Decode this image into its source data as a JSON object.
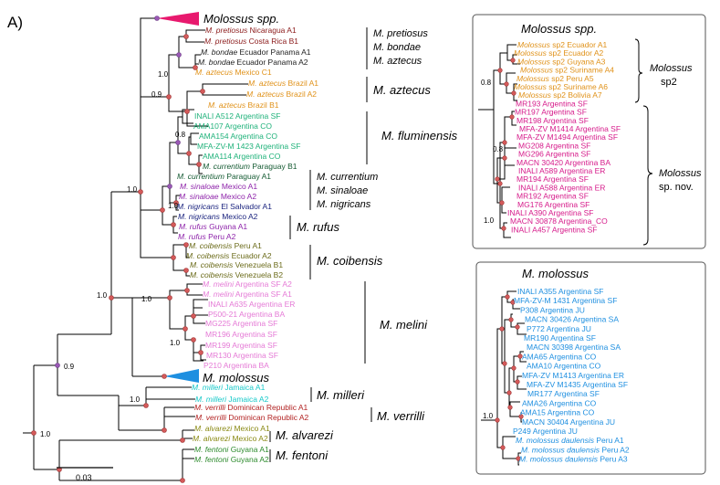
{
  "panel_label": "A)",
  "scale_bar": {
    "label": "0.03"
  },
  "main_tree": {
    "collapsed": [
      {
        "name": "Molossus spp.",
        "color": "#e8196e"
      },
      {
        "name": "M. molossus",
        "color": "#1e8fe0"
      }
    ],
    "tips": [
      {
        "sp": "M. pretiosus",
        "rest": " Nicaragua A1",
        "color": "#8b1a1a"
      },
      {
        "sp": "M. pretiosus",
        "rest": " Costa Rica B1",
        "color": "#8b1a1a"
      },
      {
        "sp": "M. bondae",
        "rest": " Ecuador Panama A1",
        "color": "#222222"
      },
      {
        "sp": "M. bondae",
        "rest": " Ecuador Panama A2",
        "color": "#222222"
      },
      {
        "sp": "M. aztecus",
        "rest": " Mexico C1",
        "color": "#e0921a"
      },
      {
        "sp": "M. aztecus",
        "rest": " Brazil A1",
        "color": "#e0921a"
      },
      {
        "sp": "M. aztecus",
        "rest": " Brazil A2",
        "color": "#e0921a"
      },
      {
        "sp": "M. aztecus",
        "rest": " Brazil B1",
        "color": "#e0921a"
      },
      {
        "sp": "",
        "rest": "INALI A512 Argentina SF",
        "color": "#1fb27a"
      },
      {
        "sp": "",
        "rest": "AMA107 Argentina CO",
        "color": "#1fb27a"
      },
      {
        "sp": "",
        "rest": "AMA154 Argentina CO",
        "color": "#1fb27a"
      },
      {
        "sp": "",
        "rest": "MFA-ZV-M 1423 Argentina SF",
        "color": "#1fb27a"
      },
      {
        "sp": "",
        "rest": "AMA114 Argentina CO",
        "color": "#1fb27a"
      },
      {
        "sp": "M. currentium",
        "rest": " Paraguay B1",
        "color": "#145a32"
      },
      {
        "sp": "M. currentium",
        "rest": " Paraguay A1",
        "color": "#145a32"
      },
      {
        "sp": "M. sinaloae",
        "rest": " Mexico A1",
        "color": "#8e24aa"
      },
      {
        "sp": "M. sinaloae",
        "rest": " Mexico A2",
        "color": "#8e24aa"
      },
      {
        "sp": "M. nigricans",
        "rest": " El Salvador A1",
        "color": "#1a237e"
      },
      {
        "sp": "M. nigricans",
        "rest": " Mexico A2",
        "color": "#1a237e"
      },
      {
        "sp": "M. rufus",
        "rest": " Guyana A1",
        "color": "#8e24aa"
      },
      {
        "sp": "M. rufus",
        "rest": " Peru A2",
        "color": "#8e24aa"
      },
      {
        "sp": "M. coibensis",
        "rest": " Peru A1",
        "color": "#6b6b1a"
      },
      {
        "sp": "M. coibensis",
        "rest": " Ecuador A2",
        "color": "#6b6b1a"
      },
      {
        "sp": "M. coibensis",
        "rest": " Venezuela B1",
        "color": "#6b6b1a"
      },
      {
        "sp": "M. coibensis",
        "rest": " Venezuela B2",
        "color": "#6b6b1a"
      },
      {
        "sp": "M. melini",
        "rest": " Argentina SF A2",
        "color": "#e57ad6"
      },
      {
        "sp": "M. melini",
        "rest": " Argentina SF A1",
        "color": "#e57ad6"
      },
      {
        "sp": "",
        "rest": "INALI A635 Argentina ER",
        "color": "#e57ad6"
      },
      {
        "sp": "",
        "rest": "P500-21 Argentina BA",
        "color": "#e57ad6"
      },
      {
        "sp": "",
        "rest": "MG225 Argentina SF",
        "color": "#e57ad6"
      },
      {
        "sp": "",
        "rest": "MR196 Argentina SF",
        "color": "#e57ad6"
      },
      {
        "sp": "",
        "rest": "MR199 Argentina SF",
        "color": "#e57ad6"
      },
      {
        "sp": "",
        "rest": "MR130 Argentina SF",
        "color": "#e57ad6"
      },
      {
        "sp": "",
        "rest": "P210 Argentina BA",
        "color": "#e57ad6"
      },
      {
        "sp": "M. milleri",
        "rest": " Jamaica A1",
        "color": "#17c9c9"
      },
      {
        "sp": "M. milleri",
        "rest": " Jamaica A2",
        "color": "#17c9c9"
      },
      {
        "sp": "M. verrilli",
        "rest": " Dominican Republic A1",
        "color": "#b22222"
      },
      {
        "sp": "M. verrilli",
        "rest": " Dominican Republic A2",
        "color": "#b22222"
      },
      {
        "sp": "M. alvarezi",
        "rest": " Mexico A1",
        "color": "#8a8a14"
      },
      {
        "sp": "M. alvarezi",
        "rest": " Mexico A2",
        "color": "#8a8a14"
      },
      {
        "sp": "M. fentoni",
        "rest": " Guyana A1",
        "color": "#2e8b2e"
      },
      {
        "sp": "M. fentoni",
        "rest": " Guyana A2",
        "color": "#2e8b2e"
      }
    ],
    "support_labels": [
      "1.0",
      "0.9",
      "0.8",
      "1.0",
      "1.0",
      "1.0",
      "1.0",
      "1.0",
      "0.9",
      "1.0",
      "1.0"
    ],
    "group_labels": [
      [
        "M. pretiosus",
        "M. bondae",
        "M. aztecus"
      ],
      [
        "M. aztecus"
      ],
      [
        "M. fluminensis"
      ],
      [
        "M. currentium",
        "M. sinaloae",
        "M. nigricans"
      ],
      [
        "M. rufus"
      ],
      [
        "M. coibensis"
      ],
      [
        "M. melini"
      ],
      [
        "M. milleri"
      ],
      [
        "M. verrilli"
      ],
      [
        "M. alvarezi"
      ],
      [
        "M. fentoni"
      ]
    ]
  },
  "panel_spp": {
    "title": "Molossus spp.",
    "support_labels": [
      "0.8",
      "0.8",
      "1.0"
    ],
    "tips": [
      {
        "sp": "Molossus",
        "rest": " sp2 Ecuador A1",
        "color": "#e0921a"
      },
      {
        "sp": "Molossus",
        "rest": " sp2 Ecuador A2",
        "color": "#e0921a"
      },
      {
        "sp": "Molossus",
        "rest": " sp2 Guyana A3",
        "color": "#e0921a"
      },
      {
        "sp": "Molossus",
        "rest": " sp2 Suriname A4",
        "color": "#e0921a"
      },
      {
        "sp": "Molossus",
        "rest": " sp2 Peru A5",
        "color": "#e0921a"
      },
      {
        "sp": "Molossus",
        "rest": " sp2 Suriname A6",
        "color": "#e0921a"
      },
      {
        "sp": "Molossus",
        "rest": " sp2 Bolivia A7",
        "color": "#e0921a"
      },
      {
        "sp": "",
        "rest": "MR193 Argentina SF",
        "color": "#d61a8a"
      },
      {
        "sp": "",
        "rest": "MR197 Argentina SF",
        "color": "#d61a8a"
      },
      {
        "sp": "",
        "rest": "MR198 Argentina SF",
        "color": "#d61a8a"
      },
      {
        "sp": "",
        "rest": "MFA-ZV M1414 Argentina SF",
        "color": "#d61a8a"
      },
      {
        "sp": "",
        "rest": "MFA-ZV M1494 Argentina SF",
        "color": "#d61a8a"
      },
      {
        "sp": "",
        "rest": "MG208 Argentina SF",
        "color": "#d61a8a"
      },
      {
        "sp": "",
        "rest": "MG296 Argentina SF",
        "color": "#d61a8a"
      },
      {
        "sp": "",
        "rest": "MACN 30420 Argentina BA",
        "color": "#d61a8a"
      },
      {
        "sp": "",
        "rest": "INALI A589 Argentina ER",
        "color": "#d61a8a"
      },
      {
        "sp": "",
        "rest": "MR194 Argentina SF",
        "color": "#d61a8a"
      },
      {
        "sp": "",
        "rest": "INALI A588 Argentina ER",
        "color": "#d61a8a"
      },
      {
        "sp": "",
        "rest": "MR192 Argentina SF",
        "color": "#d61a8a"
      },
      {
        "sp": "",
        "rest": "MG176 Argentina SF",
        "color": "#d61a8a"
      },
      {
        "sp": "",
        "rest": "INALI A390 Argentina SF",
        "color": "#d61a8a"
      },
      {
        "sp": "",
        "rest": "MACN 30878 Argentina_CO",
        "color": "#d61a8a"
      },
      {
        "sp": "",
        "rest": "INALI A457 Argentina SF",
        "color": "#d61a8a"
      }
    ],
    "groups": [
      [
        "Molossus",
        "sp2"
      ],
      [
        "Molossus",
        "sp. nov."
      ]
    ]
  },
  "panel_molossus": {
    "title": "M. molossus",
    "support_labels": [
      "1.0"
    ],
    "tips": [
      {
        "sp": "",
        "rest": "INALI A355 Argentina SF",
        "color": "#1e8fe0"
      },
      {
        "sp": "",
        "rest": "MFA-ZV-M 1431 Argentina SF",
        "color": "#1e8fe0"
      },
      {
        "sp": "",
        "rest": "P308 Argentina JU",
        "color": "#1e8fe0"
      },
      {
        "sp": "",
        "rest": "MACN 30426 Argentina SA",
        "color": "#1e8fe0"
      },
      {
        "sp": "",
        "rest": "P772 Argentina JU",
        "color": "#1e8fe0"
      },
      {
        "sp": "",
        "rest": "MR190 Argentina SF",
        "color": "#1e8fe0"
      },
      {
        "sp": "",
        "rest": "MACN 30398 Argentina SA",
        "color": "#1e8fe0"
      },
      {
        "sp": "",
        "rest": "AMA65 Argentina CO",
        "color": "#1e8fe0"
      },
      {
        "sp": "",
        "rest": "AMA10 Argentina CO",
        "color": "#1e8fe0"
      },
      {
        "sp": "",
        "rest": "MFA-ZV M1413 Argentina ER",
        "color": "#1e8fe0"
      },
      {
        "sp": "",
        "rest": "MFA-ZV M1435 Argentina SF",
        "color": "#1e8fe0"
      },
      {
        "sp": "",
        "rest": "MR177 Argentina SF",
        "color": "#1e8fe0"
      },
      {
        "sp": "",
        "rest": "AMA26 Argentina CO",
        "color": "#1e8fe0"
      },
      {
        "sp": "",
        "rest": "AMA15 Argentina CO",
        "color": "#1e8fe0"
      },
      {
        "sp": "",
        "rest": "MACN 30404 Argentina JU",
        "color": "#1e8fe0"
      },
      {
        "sp": "",
        "rest": "P249 Argentina JU",
        "color": "#1e8fe0"
      },
      {
        "sp": "M. molossus daulensis",
        "rest": " Peru A1",
        "color": "#1e8fe0"
      },
      {
        "sp": "M. molossus daulensis",
        "rest": " Peru A2",
        "color": "#1e8fe0"
      },
      {
        "sp": "M. molossus daulensis",
        "rest": " Peru A3",
        "color": "#1e8fe0"
      }
    ]
  }
}
